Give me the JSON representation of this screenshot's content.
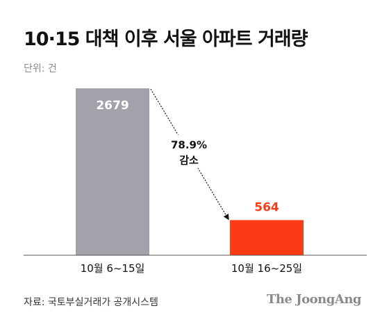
{
  "title": "10·15 대책 이후 서울 아파트 거래량",
  "unit_label": "단위: 건",
  "source": "자료: 국토부실거래가 공개시스템",
  "brand": "The JoongAng",
  "colors": {
    "bar_before": "#a2a2aa",
    "bar_after": "#fc3b16",
    "label_before": "#ffffff",
    "label_after": "#fc3b16",
    "annotation": "#111111"
  },
  "chart_data": {
    "type": "bar",
    "title": "10·15 대책 이후 서울 아파트 거래량",
    "categories": [
      "10월 6~15일",
      "10월 16~25일"
    ],
    "values": [
      2679,
      564
    ],
    "ylim": [
      0,
      2679
    ],
    "unit": "건",
    "grid": false,
    "legend": "none",
    "annotation": {
      "line1": "78.9%",
      "line2": "감소"
    }
  }
}
